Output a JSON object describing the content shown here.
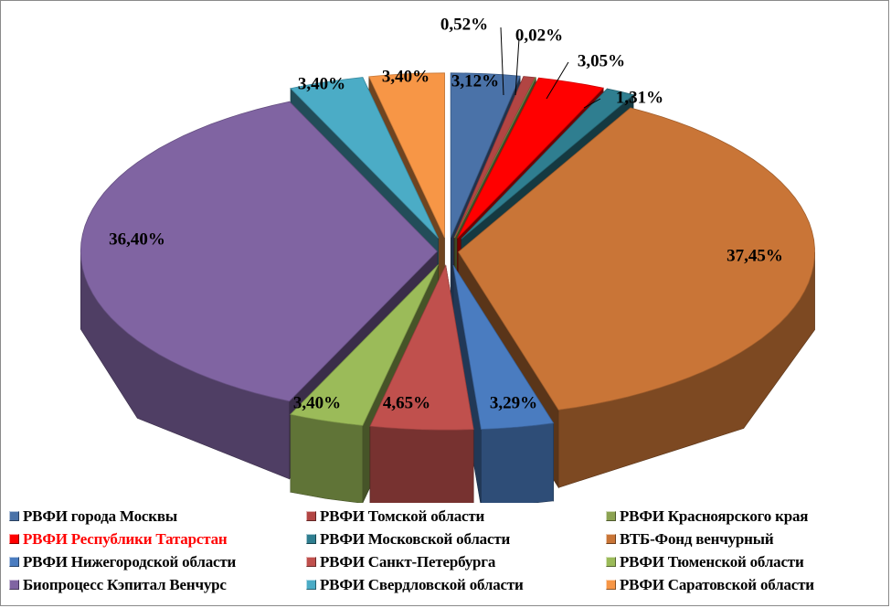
{
  "chart_data": {
    "type": "pie",
    "title": "",
    "three_d": true,
    "exploded": true,
    "legend_position": "bottom",
    "slices": [
      {
        "name": "РВФИ города Москвы",
        "value": 3.12,
        "label": "3,12%",
        "color": "#4a72a8",
        "highlight": false
      },
      {
        "name": "РВФИ Томской области",
        "value": 0.52,
        "label": "0,52%",
        "color": "#b24543",
        "highlight": false
      },
      {
        "name": "РВФИ Красноярского края",
        "value": 0.02,
        "label": "0,02%",
        "color": "#8ca352",
        "highlight": false
      },
      {
        "name": "РВФИ Республики Татарстан",
        "value": 3.05,
        "label": "3,05%",
        "color": "#ff0000",
        "highlight": true
      },
      {
        "name": "РВФИ Московской области",
        "value": 1.31,
        "label": "1,31%",
        "color": "#2f7e90",
        "highlight": false
      },
      {
        "name": "ВТБ-Фонд венчурный",
        "value": 37.45,
        "label": "37,45%",
        "color": "#c97537",
        "highlight": false
      },
      {
        "name": "РВФИ Нижегородской области",
        "value": 3.29,
        "label": "3,29%",
        "color": "#4a7cc0",
        "highlight": false
      },
      {
        "name": "РВФИ Санкт-Петербурга",
        "value": 4.65,
        "label": "4,65%",
        "color": "#c0504d",
        "highlight": false
      },
      {
        "name": "РВФИ Тюменской области",
        "value": 3.4,
        "label": "3,40%",
        "color": "#9bbb59",
        "highlight": false
      },
      {
        "name": "Биопроцесс Кэпитал Венчурс",
        "value": 36.4,
        "label": "36,40%",
        "color": "#8064a2",
        "highlight": false
      },
      {
        "name": "РВФИ Свердловской области",
        "value": 3.4,
        "label": "3,40%",
        "color": "#4bacc6",
        "highlight": false
      },
      {
        "name": "РВФИ Саратовской области",
        "value": 3.4,
        "label": "3,40%",
        "color": "#f79646",
        "highlight": false
      }
    ]
  },
  "legend": {
    "items": [
      {
        "label": "РВФИ города Москвы",
        "color": "#4a72a8",
        "highlight": false
      },
      {
        "label": "РВФИ Томской области",
        "color": "#b24543",
        "highlight": false
      },
      {
        "label": "РВФИ Красноярского края",
        "color": "#8ca352",
        "highlight": false
      },
      {
        "label": "РВФИ Республики Татарстан",
        "color": "#ff0000",
        "highlight": true
      },
      {
        "label": "РВФИ Московской области",
        "color": "#2f7e90",
        "highlight": false
      },
      {
        "label": "ВТБ-Фонд венчурный",
        "color": "#c97537",
        "highlight": false
      },
      {
        "label": "РВФИ Нижегородской области",
        "color": "#4a7cc0",
        "highlight": false
      },
      {
        "label": "РВФИ Санкт-Петербурга",
        "color": "#c0504d",
        "highlight": false
      },
      {
        "label": "РВФИ Тюменской области",
        "color": "#9bbb59",
        "highlight": false
      },
      {
        "label": "Биопроцесс Кэпитал Венчурс",
        "color": "#8064a2",
        "highlight": false
      },
      {
        "label": "РВФИ Свердловской области",
        "color": "#4bacc6",
        "highlight": false
      },
      {
        "label": "РВФИ Саратовской области",
        "color": "#f79646",
        "highlight": false
      }
    ]
  },
  "colors": {
    "highlight_text": "#ff0000",
    "normal_text": "#000000"
  }
}
